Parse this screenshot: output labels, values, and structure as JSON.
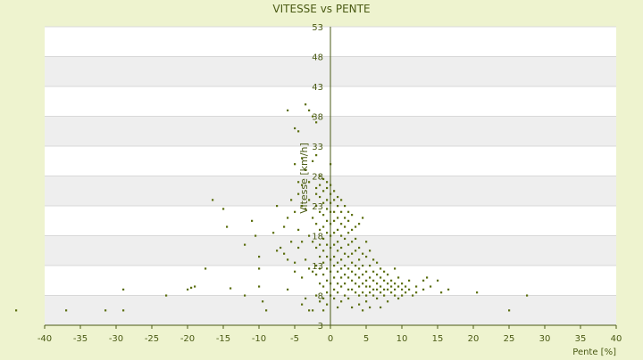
{
  "chart_data": {
    "type": "scatter",
    "title": "VITESSE vs PENTE",
    "xlabel": "Pente [%]",
    "ylabel": "Vitesse [km/h]",
    "xlim": [
      -40,
      40
    ],
    "ylim": [
      3,
      53
    ],
    "x_ticks": [
      "-40",
      "-35",
      "-30",
      "-25",
      "-20",
      "-15",
      "-10",
      "-5",
      "0",
      "5",
      "10",
      "15",
      "20",
      "25",
      "30",
      "35",
      "40"
    ],
    "y_ticks": [
      "3",
      "8",
      "13",
      "18",
      "23",
      "28",
      "33",
      "38",
      "43",
      "48",
      "53"
    ],
    "grid": true,
    "legend": "none",
    "colors": {
      "background": "#eef3cf",
      "band_light": "#ffffff",
      "band_dark": "#eeeeee",
      "point": "#5b6e0e",
      "axis": "#4a5a14"
    },
    "series": [
      {
        "points": [
          [
            -44.0,
            5.5
          ],
          [
            -37.0,
            5.5
          ],
          [
            -31.5,
            5.5
          ],
          [
            -29.0,
            5.5
          ],
          [
            -29.0,
            9.0
          ],
          [
            -23.0,
            8.0
          ],
          [
            -20.0,
            9.0
          ],
          [
            -19.5,
            9.3
          ],
          [
            -19.0,
            9.5
          ],
          [
            -17.5,
            12.5
          ],
          [
            -16.5,
            24.0
          ],
          [
            -15.0,
            22.5
          ],
          [
            -14.5,
            19.5
          ],
          [
            -14.0,
            9.2
          ],
          [
            -12.0,
            16.5
          ],
          [
            -12.0,
            8.0
          ],
          [
            -11.0,
            20.5
          ],
          [
            -10.5,
            18.0
          ],
          [
            -10.0,
            14.5
          ],
          [
            -10.0,
            12.5
          ],
          [
            -10.0,
            9.5
          ],
          [
            -9.5,
            7.0
          ],
          [
            -9.0,
            5.5
          ],
          [
            -8.0,
            18.5
          ],
          [
            -7.5,
            23.0
          ],
          [
            -7.5,
            15.5
          ],
          [
            -7.0,
            16.0
          ],
          [
            -6.5,
            19.5
          ],
          [
            -6.5,
            15.0
          ],
          [
            -6.0,
            39.0
          ],
          [
            -6.0,
            21.0
          ],
          [
            -6.0,
            14.0
          ],
          [
            -6.0,
            9.0
          ],
          [
            -5.5,
            24.0
          ],
          [
            -5.5,
            17.0
          ],
          [
            -5.0,
            36.0
          ],
          [
            -5.0,
            30.0
          ],
          [
            -5.0,
            22.0
          ],
          [
            -5.0,
            13.5
          ],
          [
            -5.0,
            12.0
          ],
          [
            -4.5,
            35.5
          ],
          [
            -4.5,
            27.0
          ],
          [
            -4.5,
            25.0
          ],
          [
            -4.5,
            19.0
          ],
          [
            -4.5,
            16.0
          ],
          [
            -4.0,
            31.0
          ],
          [
            -4.0,
            26.5
          ],
          [
            -4.0,
            23.0
          ],
          [
            -4.0,
            17.0
          ],
          [
            -4.0,
            11.0
          ],
          [
            -4.0,
            6.5
          ],
          [
            -3.5,
            40.0
          ],
          [
            -3.5,
            29.0
          ],
          [
            -3.5,
            22.5
          ],
          [
            -3.5,
            14.0
          ],
          [
            -3.5,
            7.5
          ],
          [
            -3.0,
            39.0
          ],
          [
            -3.0,
            27.0
          ],
          [
            -3.0,
            24.0
          ],
          [
            -3.0,
            18.0
          ],
          [
            -3.0,
            12.5
          ],
          [
            -3.0,
            5.5
          ],
          [
            -2.5,
            38.0
          ],
          [
            -2.5,
            30.5
          ],
          [
            -2.5,
            21.0
          ],
          [
            -2.5,
            17.0
          ],
          [
            -2.5,
            12.0
          ],
          [
            -2.5,
            5.5
          ],
          [
            -2.0,
            37.0
          ],
          [
            -2.0,
            31.5
          ],
          [
            -2.0,
            26.0
          ],
          [
            -2.0,
            25.0
          ],
          [
            -2.0,
            23.0
          ],
          [
            -2.0,
            20.0
          ],
          [
            -2.0,
            16.0
          ],
          [
            -2.0,
            13.0
          ],
          [
            -2.0,
            11.5
          ],
          [
            -2.0,
            8.0
          ],
          [
            -1.5,
            28.0
          ],
          [
            -1.5,
            26.5
          ],
          [
            -1.5,
            24.5
          ],
          [
            -1.5,
            22.0
          ],
          [
            -1.5,
            19.0
          ],
          [
            -1.5,
            16.5
          ],
          [
            -1.5,
            14.5
          ],
          [
            -1.5,
            12.5
          ],
          [
            -1.5,
            10.0
          ],
          [
            -1.5,
            7.0
          ],
          [
            -1.0,
            27.5
          ],
          [
            -1.0,
            25.5
          ],
          [
            -1.0,
            23.5
          ],
          [
            -1.0,
            21.5
          ],
          [
            -1.0,
            19.5
          ],
          [
            -1.0,
            17.5
          ],
          [
            -1.0,
            15.5
          ],
          [
            -1.0,
            13.5
          ],
          [
            -1.0,
            11.5
          ],
          [
            -1.0,
            9.5
          ],
          [
            -1.0,
            7.5
          ],
          [
            -1.0,
            5.5
          ],
          [
            -0.5,
            27.0
          ],
          [
            -0.5,
            26.0
          ],
          [
            -0.5,
            24.0
          ],
          [
            -0.5,
            22.5
          ],
          [
            -0.5,
            20.5
          ],
          [
            -0.5,
            18.5
          ],
          [
            -0.5,
            16.5
          ],
          [
            -0.5,
            14.5
          ],
          [
            -0.5,
            12.5
          ],
          [
            -0.5,
            10.5
          ],
          [
            -0.5,
            8.5
          ],
          [
            -0.5,
            6.5
          ],
          [
            0.0,
            30.0
          ],
          [
            0.0,
            26.5
          ],
          [
            0.0,
            25.0
          ],
          [
            0.0,
            23.5
          ],
          [
            0.0,
            22.0
          ],
          [
            0.0,
            20.0
          ],
          [
            0.0,
            18.0
          ],
          [
            0.0,
            16.0
          ],
          [
            0.0,
            14.0
          ],
          [
            0.0,
            12.0
          ],
          [
            0.0,
            10.0
          ],
          [
            0.0,
            8.0
          ],
          [
            0.5,
            25.5
          ],
          [
            0.5,
            24.0
          ],
          [
            0.5,
            22.0
          ],
          [
            0.5,
            20.5
          ],
          [
            0.5,
            18.5
          ],
          [
            0.5,
            16.5
          ],
          [
            0.5,
            14.5
          ],
          [
            0.5,
            13.0
          ],
          [
            0.5,
            11.0
          ],
          [
            0.5,
            9.0
          ],
          [
            0.5,
            7.5
          ],
          [
            1.0,
            24.5
          ],
          [
            1.0,
            23.0
          ],
          [
            1.0,
            21.0
          ],
          [
            1.0,
            19.0
          ],
          [
            1.0,
            17.0
          ],
          [
            1.0,
            15.5
          ],
          [
            1.0,
            13.5
          ],
          [
            1.0,
            12.0
          ],
          [
            1.0,
            10.0
          ],
          [
            1.0,
            8.5
          ],
          [
            1.0,
            6.0
          ],
          [
            1.5,
            24.0
          ],
          [
            1.5,
            22.0
          ],
          [
            1.5,
            20.0
          ],
          [
            1.5,
            18.0
          ],
          [
            1.5,
            16.0
          ],
          [
            1.5,
            14.0
          ],
          [
            1.5,
            12.5
          ],
          [
            1.5,
            11.0
          ],
          [
            1.5,
            9.5
          ],
          [
            1.5,
            7.0
          ],
          [
            2.0,
            23.0
          ],
          [
            2.0,
            21.0
          ],
          [
            2.0,
            19.5
          ],
          [
            2.0,
            17.5
          ],
          [
            2.0,
            15.0
          ],
          [
            2.0,
            13.0
          ],
          [
            2.0,
            11.5
          ],
          [
            2.0,
            10.0
          ],
          [
            2.0,
            8.0
          ],
          [
            2.5,
            22.0
          ],
          [
            2.5,
            20.5
          ],
          [
            2.5,
            18.5
          ],
          [
            2.5,
            16.5
          ],
          [
            2.5,
            14.5
          ],
          [
            2.5,
            12.5
          ],
          [
            2.5,
            11.0
          ],
          [
            2.5,
            9.0
          ],
          [
            2.5,
            7.5
          ],
          [
            3.0,
            21.5
          ],
          [
            3.0,
            19.0
          ],
          [
            3.0,
            17.0
          ],
          [
            3.0,
            15.0
          ],
          [
            3.0,
            13.5
          ],
          [
            3.0,
            12.0
          ],
          [
            3.0,
            10.5
          ],
          [
            3.0,
            9.0
          ],
          [
            3.0,
            6.0
          ],
          [
            3.5,
            19.5
          ],
          [
            3.5,
            17.5
          ],
          [
            3.5,
            15.5
          ],
          [
            3.5,
            13.0
          ],
          [
            3.5,
            11.5
          ],
          [
            3.5,
            10.0
          ],
          [
            3.5,
            8.5
          ],
          [
            4.0,
            20.0
          ],
          [
            4.0,
            16.0
          ],
          [
            4.0,
            14.0
          ],
          [
            4.0,
            12.5
          ],
          [
            4.0,
            11.0
          ],
          [
            4.0,
            9.5
          ],
          [
            4.0,
            8.0
          ],
          [
            4.0,
            6.5
          ],
          [
            4.5,
            21.0
          ],
          [
            4.5,
            15.0
          ],
          [
            4.5,
            13.0
          ],
          [
            4.5,
            11.5
          ],
          [
            4.5,
            10.0
          ],
          [
            4.5,
            8.5
          ],
          [
            4.5,
            5.5
          ],
          [
            5.0,
            17.0
          ],
          [
            5.0,
            14.5
          ],
          [
            5.0,
            12.0
          ],
          [
            5.0,
            10.5
          ],
          [
            5.0,
            9.5
          ],
          [
            5.0,
            8.0
          ],
          [
            5.0,
            7.0
          ],
          [
            5.5,
            15.5
          ],
          [
            5.5,
            13.0
          ],
          [
            5.5,
            11.0
          ],
          [
            5.5,
            9.5
          ],
          [
            5.5,
            8.5
          ],
          [
            5.5,
            6.0
          ],
          [
            6.0,
            14.0
          ],
          [
            6.0,
            12.0
          ],
          [
            6.0,
            10.5
          ],
          [
            6.0,
            9.0
          ],
          [
            6.0,
            8.0
          ],
          [
            6.5,
            13.5
          ],
          [
            6.5,
            11.5
          ],
          [
            6.5,
            10.0
          ],
          [
            6.5,
            9.0
          ],
          [
            6.5,
            7.5
          ],
          [
            7.0,
            12.5
          ],
          [
            7.0,
            11.0
          ],
          [
            7.0,
            9.5
          ],
          [
            7.0,
            8.5
          ],
          [
            7.0,
            6.0
          ],
          [
            7.5,
            12.0
          ],
          [
            7.5,
            10.5
          ],
          [
            7.5,
            9.0
          ],
          [
            7.5,
            8.0
          ],
          [
            8.0,
            11.5
          ],
          [
            8.0,
            10.0
          ],
          [
            8.0,
            9.0
          ],
          [
            8.0,
            7.0
          ],
          [
            8.5,
            10.5
          ],
          [
            8.5,
            9.5
          ],
          [
            8.5,
            8.5
          ],
          [
            9.0,
            12.5
          ],
          [
            9.0,
            10.0
          ],
          [
            9.0,
            9.0
          ],
          [
            9.0,
            8.0
          ],
          [
            9.5,
            11.0
          ],
          [
            9.5,
            9.5
          ],
          [
            9.5,
            7.5
          ],
          [
            10.0,
            10.0
          ],
          [
            10.0,
            9.0
          ],
          [
            10.0,
            8.0
          ],
          [
            10.5,
            9.5
          ],
          [
            10.5,
            8.5
          ],
          [
            11.0,
            10.5
          ],
          [
            11.0,
            9.0
          ],
          [
            11.5,
            8.0
          ],
          [
            12.0,
            9.5
          ],
          [
            12.0,
            8.5
          ],
          [
            13.0,
            10.5
          ],
          [
            13.0,
            9.0
          ],
          [
            13.5,
            11.0
          ],
          [
            14.0,
            9.5
          ],
          [
            15.0,
            10.5
          ],
          [
            15.5,
            8.5
          ],
          [
            16.5,
            9.0
          ],
          [
            20.5,
            8.5
          ],
          [
            25.0,
            5.5
          ],
          [
            27.5,
            8.0
          ]
        ]
      }
    ]
  }
}
